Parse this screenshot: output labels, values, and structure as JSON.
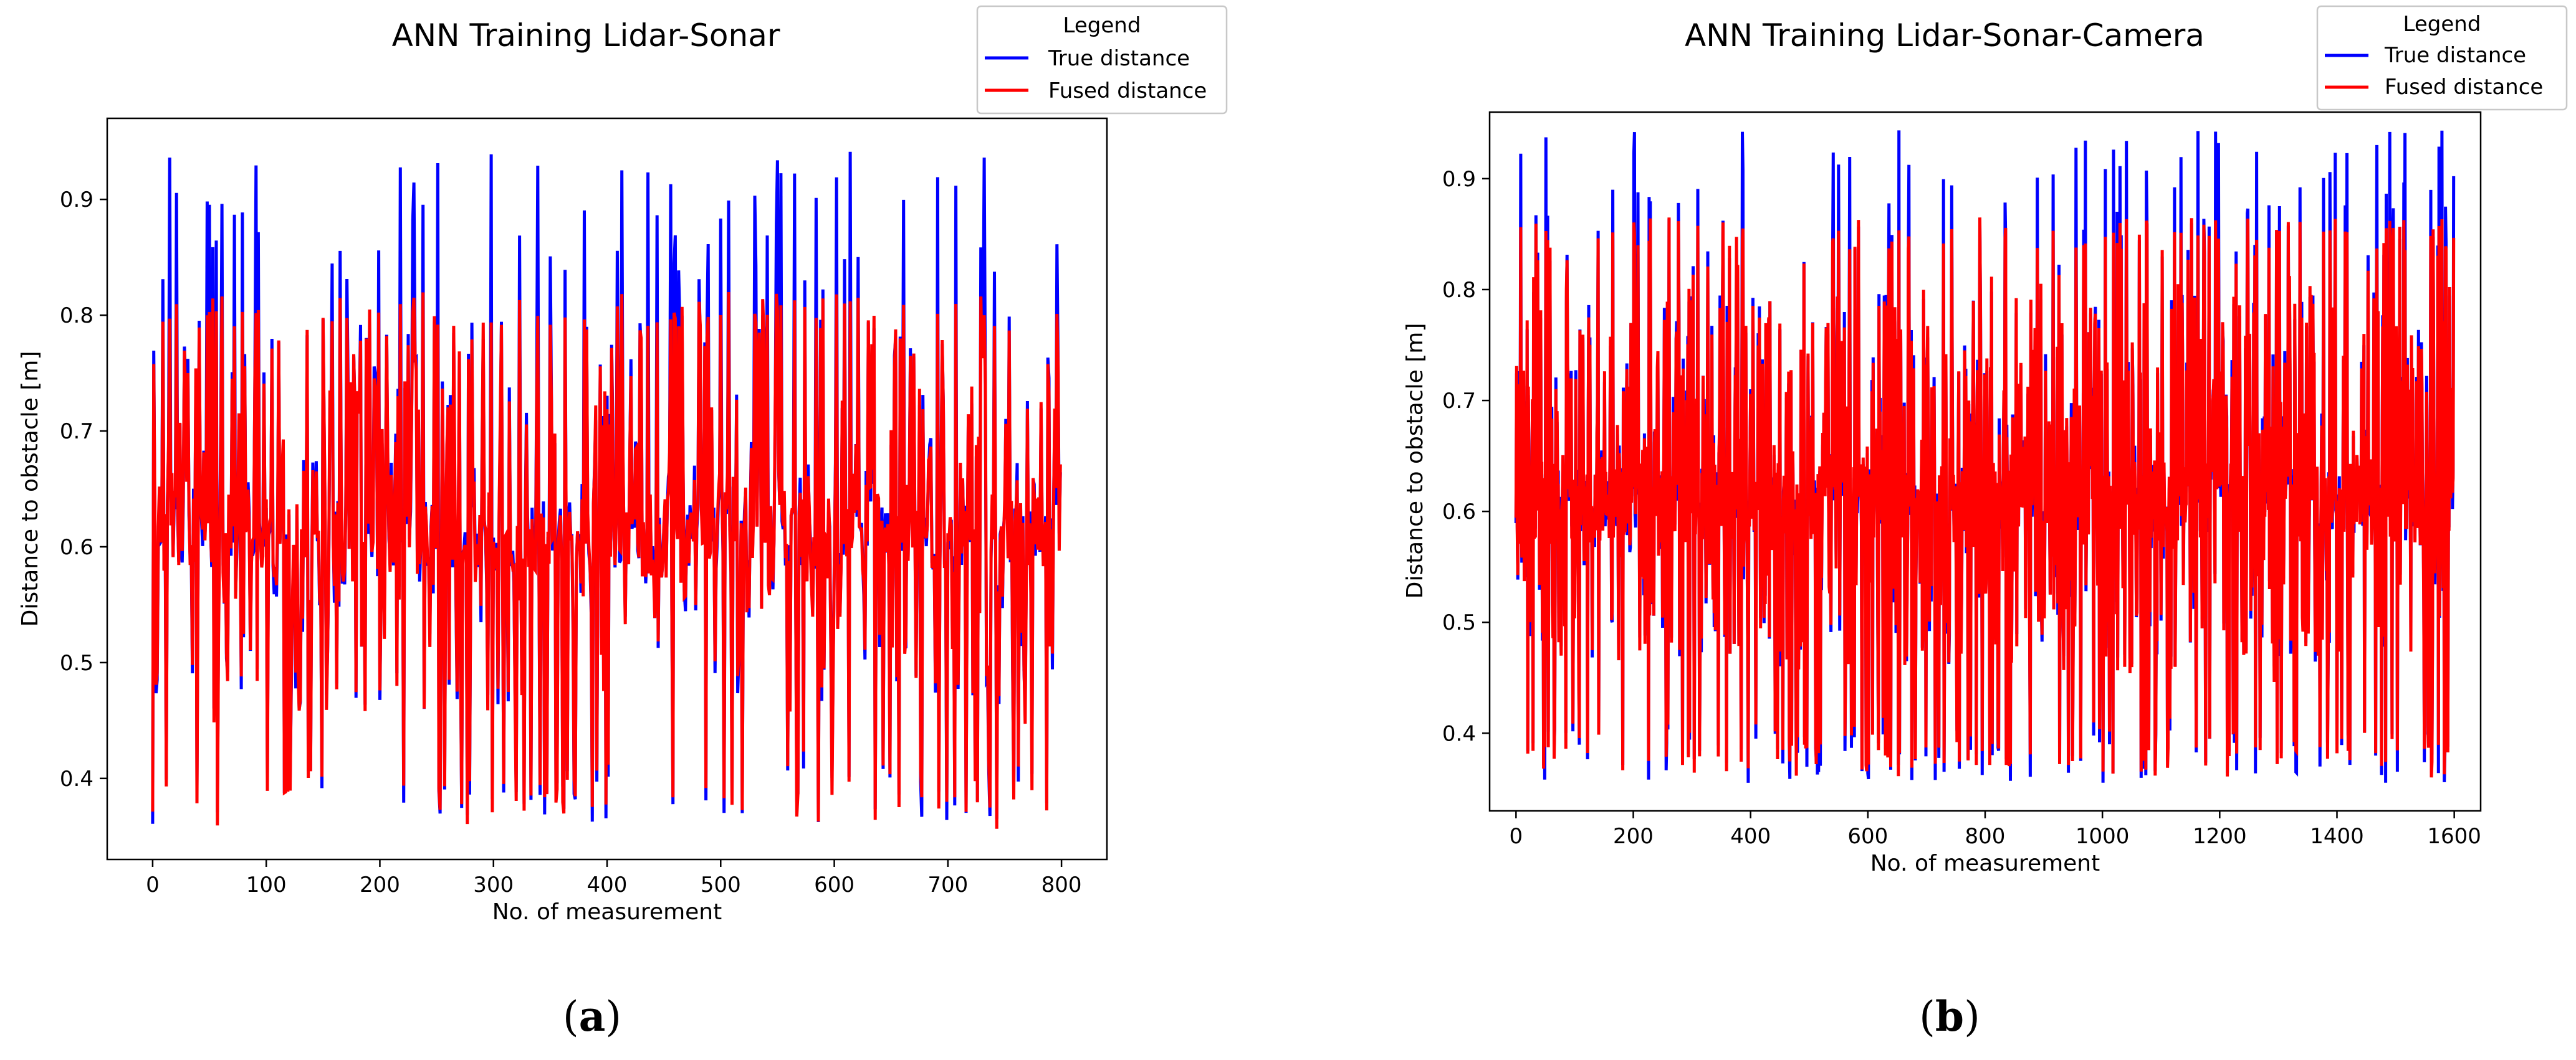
{
  "chart_data": [
    {
      "type": "line",
      "title": "ANN Training Lidar-Sonar",
      "xlabel": "No. of measurement",
      "ylabel": "Distance to obstacle [m]",
      "xlim": [
        -40,
        840
      ],
      "ylim": [
        0.33,
        0.97
      ],
      "xticks": [
        0,
        100,
        200,
        300,
        400,
        500,
        600,
        700,
        800
      ],
      "yticks": [
        0.4,
        0.5,
        0.6,
        0.7,
        0.8,
        0.9
      ],
      "xtick_labels": [
        "0",
        "100",
        "200",
        "300",
        "400",
        "500",
        "600",
        "700",
        "800"
      ],
      "ytick_labels": [
        "0.4",
        "0.5",
        "0.6",
        "0.7",
        "0.8",
        "0.9"
      ],
      "n_points": 800,
      "legend_title": "Legend",
      "legend_position": "top-right, outside axes",
      "series": [
        {
          "name": "True distance",
          "color": "#0000ff",
          "range": [
            0.36,
            0.945
          ]
        },
        {
          "name": "Fused distance",
          "color": "#ff0000",
          "range": [
            0.355,
            0.82
          ]
        }
      ],
      "panel_label_open": "(",
      "panel_label_letter": "a",
      "panel_label_close": ")"
    },
    {
      "type": "line",
      "title": "ANN Training Lidar-Sonar-Camera",
      "xlabel": "No. of measurement",
      "ylabel": "Distance to obstacle [m]",
      "xlim": [
        -45,
        1645
      ],
      "ylim": [
        0.33,
        0.96
      ],
      "xticks": [
        0,
        200,
        400,
        600,
        800,
        1000,
        1200,
        1400,
        1600
      ],
      "yticks": [
        0.4,
        0.5,
        0.6,
        0.7,
        0.8,
        0.9
      ],
      "xtick_labels": [
        "0",
        "200",
        "400",
        "600",
        "800",
        "1000",
        "1200",
        "1400",
        "1600"
      ],
      "ytick_labels": [
        "0.4",
        "0.5",
        "0.6",
        "0.7",
        "0.8",
        "0.9"
      ],
      "n_points": 1600,
      "legend_title": "Legend",
      "legend_position": "top-right, outside axes",
      "series": [
        {
          "name": "True distance",
          "color": "#0000ff",
          "range": [
            0.355,
            0.945
          ]
        },
        {
          "name": "Fused distance",
          "color": "#ff0000",
          "range": [
            0.36,
            0.865
          ]
        }
      ],
      "panel_label_open": "(",
      "panel_label_letter": "b",
      "panel_label_close": ")"
    }
  ]
}
